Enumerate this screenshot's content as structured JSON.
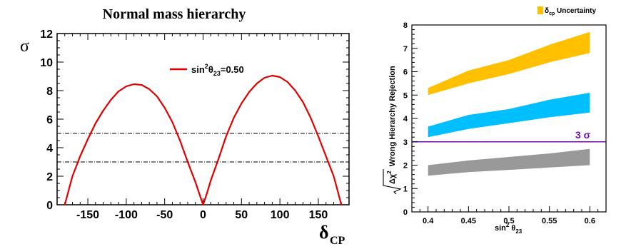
{
  "chart_data": [
    {
      "type": "line",
      "title": "Normal mass hierarchy",
      "ylabel": "σ",
      "xlabel": "δ",
      "xlabel_sub": "CP",
      "xlim": [
        -190,
        190
      ],
      "ylim": [
        0,
        12
      ],
      "xticks": [
        -150,
        -100,
        -50,
        0,
        50,
        100,
        150
      ],
      "yticks": [
        0,
        2,
        4,
        6,
        8,
        10,
        12
      ],
      "reference_lines": [
        3,
        5
      ],
      "legend": {
        "position": "top-right",
        "label_pre": "sin",
        "label_sup": "2",
        "label_mid": "θ",
        "label_sub": "23",
        "label_post": "=0.50"
      },
      "series": [
        {
          "name": "sin²θ23=0.50",
          "color": "#e00000",
          "x": [
            -180,
            -175,
            -170,
            -160,
            -150,
            -140,
            -130,
            -120,
            -110,
            -100,
            -90,
            -80,
            -70,
            -60,
            -50,
            -40,
            -30,
            -20,
            -10,
            -5,
            0,
            5,
            10,
            20,
            30,
            40,
            50,
            60,
            70,
            80,
            90,
            100,
            110,
            120,
            130,
            140,
            150,
            160,
            170,
            175,
            180
          ],
          "y": [
            0,
            1.0,
            2.0,
            3.4,
            4.6,
            5.7,
            6.6,
            7.35,
            7.95,
            8.3,
            8.45,
            8.4,
            8.1,
            7.6,
            6.8,
            5.8,
            4.5,
            3.0,
            1.6,
            0.8,
            0,
            0.8,
            1.7,
            3.2,
            4.8,
            6.1,
            7.1,
            7.9,
            8.5,
            8.9,
            9.05,
            8.95,
            8.6,
            8.0,
            7.2,
            6.1,
            4.8,
            3.4,
            2.0,
            1.0,
            0
          ]
        }
      ]
    },
    {
      "type": "area",
      "title": "",
      "ylabel_root": "Δχ",
      "ylabel_sup": "2",
      "ylabel_rest": "Wrong Hierarchy Rejection",
      "xlabel_pre": "sin",
      "xlabel_sup": "2",
      "xlabel_mid": "θ",
      "xlabel_sub": "23",
      "xlim": [
        0.38,
        0.62
      ],
      "ylim": [
        0,
        8
      ],
      "xticks": [
        "0.4",
        "0.45",
        "0.5",
        "0.55",
        "0.6"
      ],
      "yticks": [
        "0",
        "1",
        "2",
        "3",
        "4",
        "5",
        "6",
        "7",
        "8"
      ],
      "legend": {
        "position": "top-right",
        "label_main": "δ",
        "label_sub": "cp",
        "label_rest": " Uncertainty",
        "color": "#ffc000"
      },
      "reference_line": {
        "y": 3,
        "label": "3 σ",
        "color": "#6a0fb0"
      },
      "bands": [
        {
          "color": "#ffc000",
          "x": [
            0.4,
            0.45,
            0.5,
            0.55,
            0.6
          ],
          "lower": [
            5.0,
            5.5,
            5.9,
            6.4,
            6.8
          ],
          "upper": [
            5.3,
            6.05,
            6.5,
            7.15,
            7.7
          ]
        },
        {
          "color": "#00bfff",
          "x": [
            0.4,
            0.45,
            0.5,
            0.55,
            0.6
          ],
          "lower": [
            3.2,
            3.55,
            3.8,
            4.05,
            4.25
          ],
          "upper": [
            3.65,
            4.15,
            4.4,
            4.8,
            5.1
          ]
        },
        {
          "color": "#999999",
          "x": [
            0.4,
            0.45,
            0.5,
            0.55,
            0.6
          ],
          "lower": [
            1.55,
            1.7,
            1.8,
            1.9,
            2.0
          ],
          "upper": [
            2.0,
            2.2,
            2.35,
            2.5,
            2.7
          ]
        }
      ]
    }
  ]
}
